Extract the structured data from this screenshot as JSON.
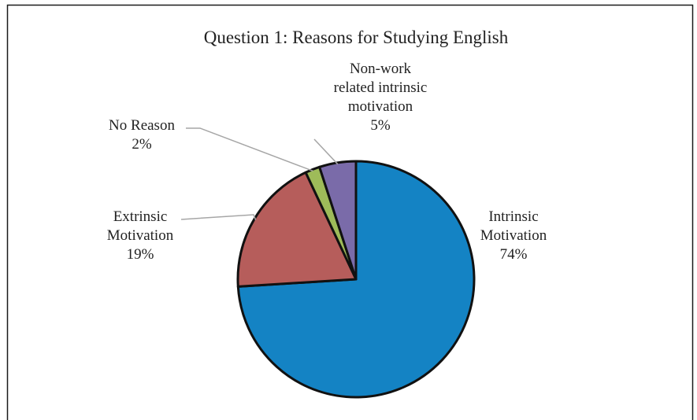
{
  "chart_data": {
    "type": "pie",
    "title": "Question 1: Reasons for Studying English",
    "start_angle_deg": 0,
    "direction": "clockwise",
    "slices": [
      {
        "key": "intrinsic",
        "label_lines": [
          "Intrinsic",
          "Motivation",
          "74%"
        ],
        "value": 74,
        "color": "#1483c4"
      },
      {
        "key": "extrinsic",
        "label_lines": [
          "Extrinsic",
          "Motivation",
          "19%"
        ],
        "value": 19,
        "color": "#b65d5b"
      },
      {
        "key": "no-reason",
        "label_lines": [
          "No Reason",
          "2%"
        ],
        "value": 2,
        "color": "#9ebb59"
      },
      {
        "key": "non-work",
        "label_lines": [
          "Non-work",
          "related intrinsic",
          "motivation",
          "5%"
        ],
        "value": 5,
        "color": "#7a6ba9"
      }
    ]
  }
}
